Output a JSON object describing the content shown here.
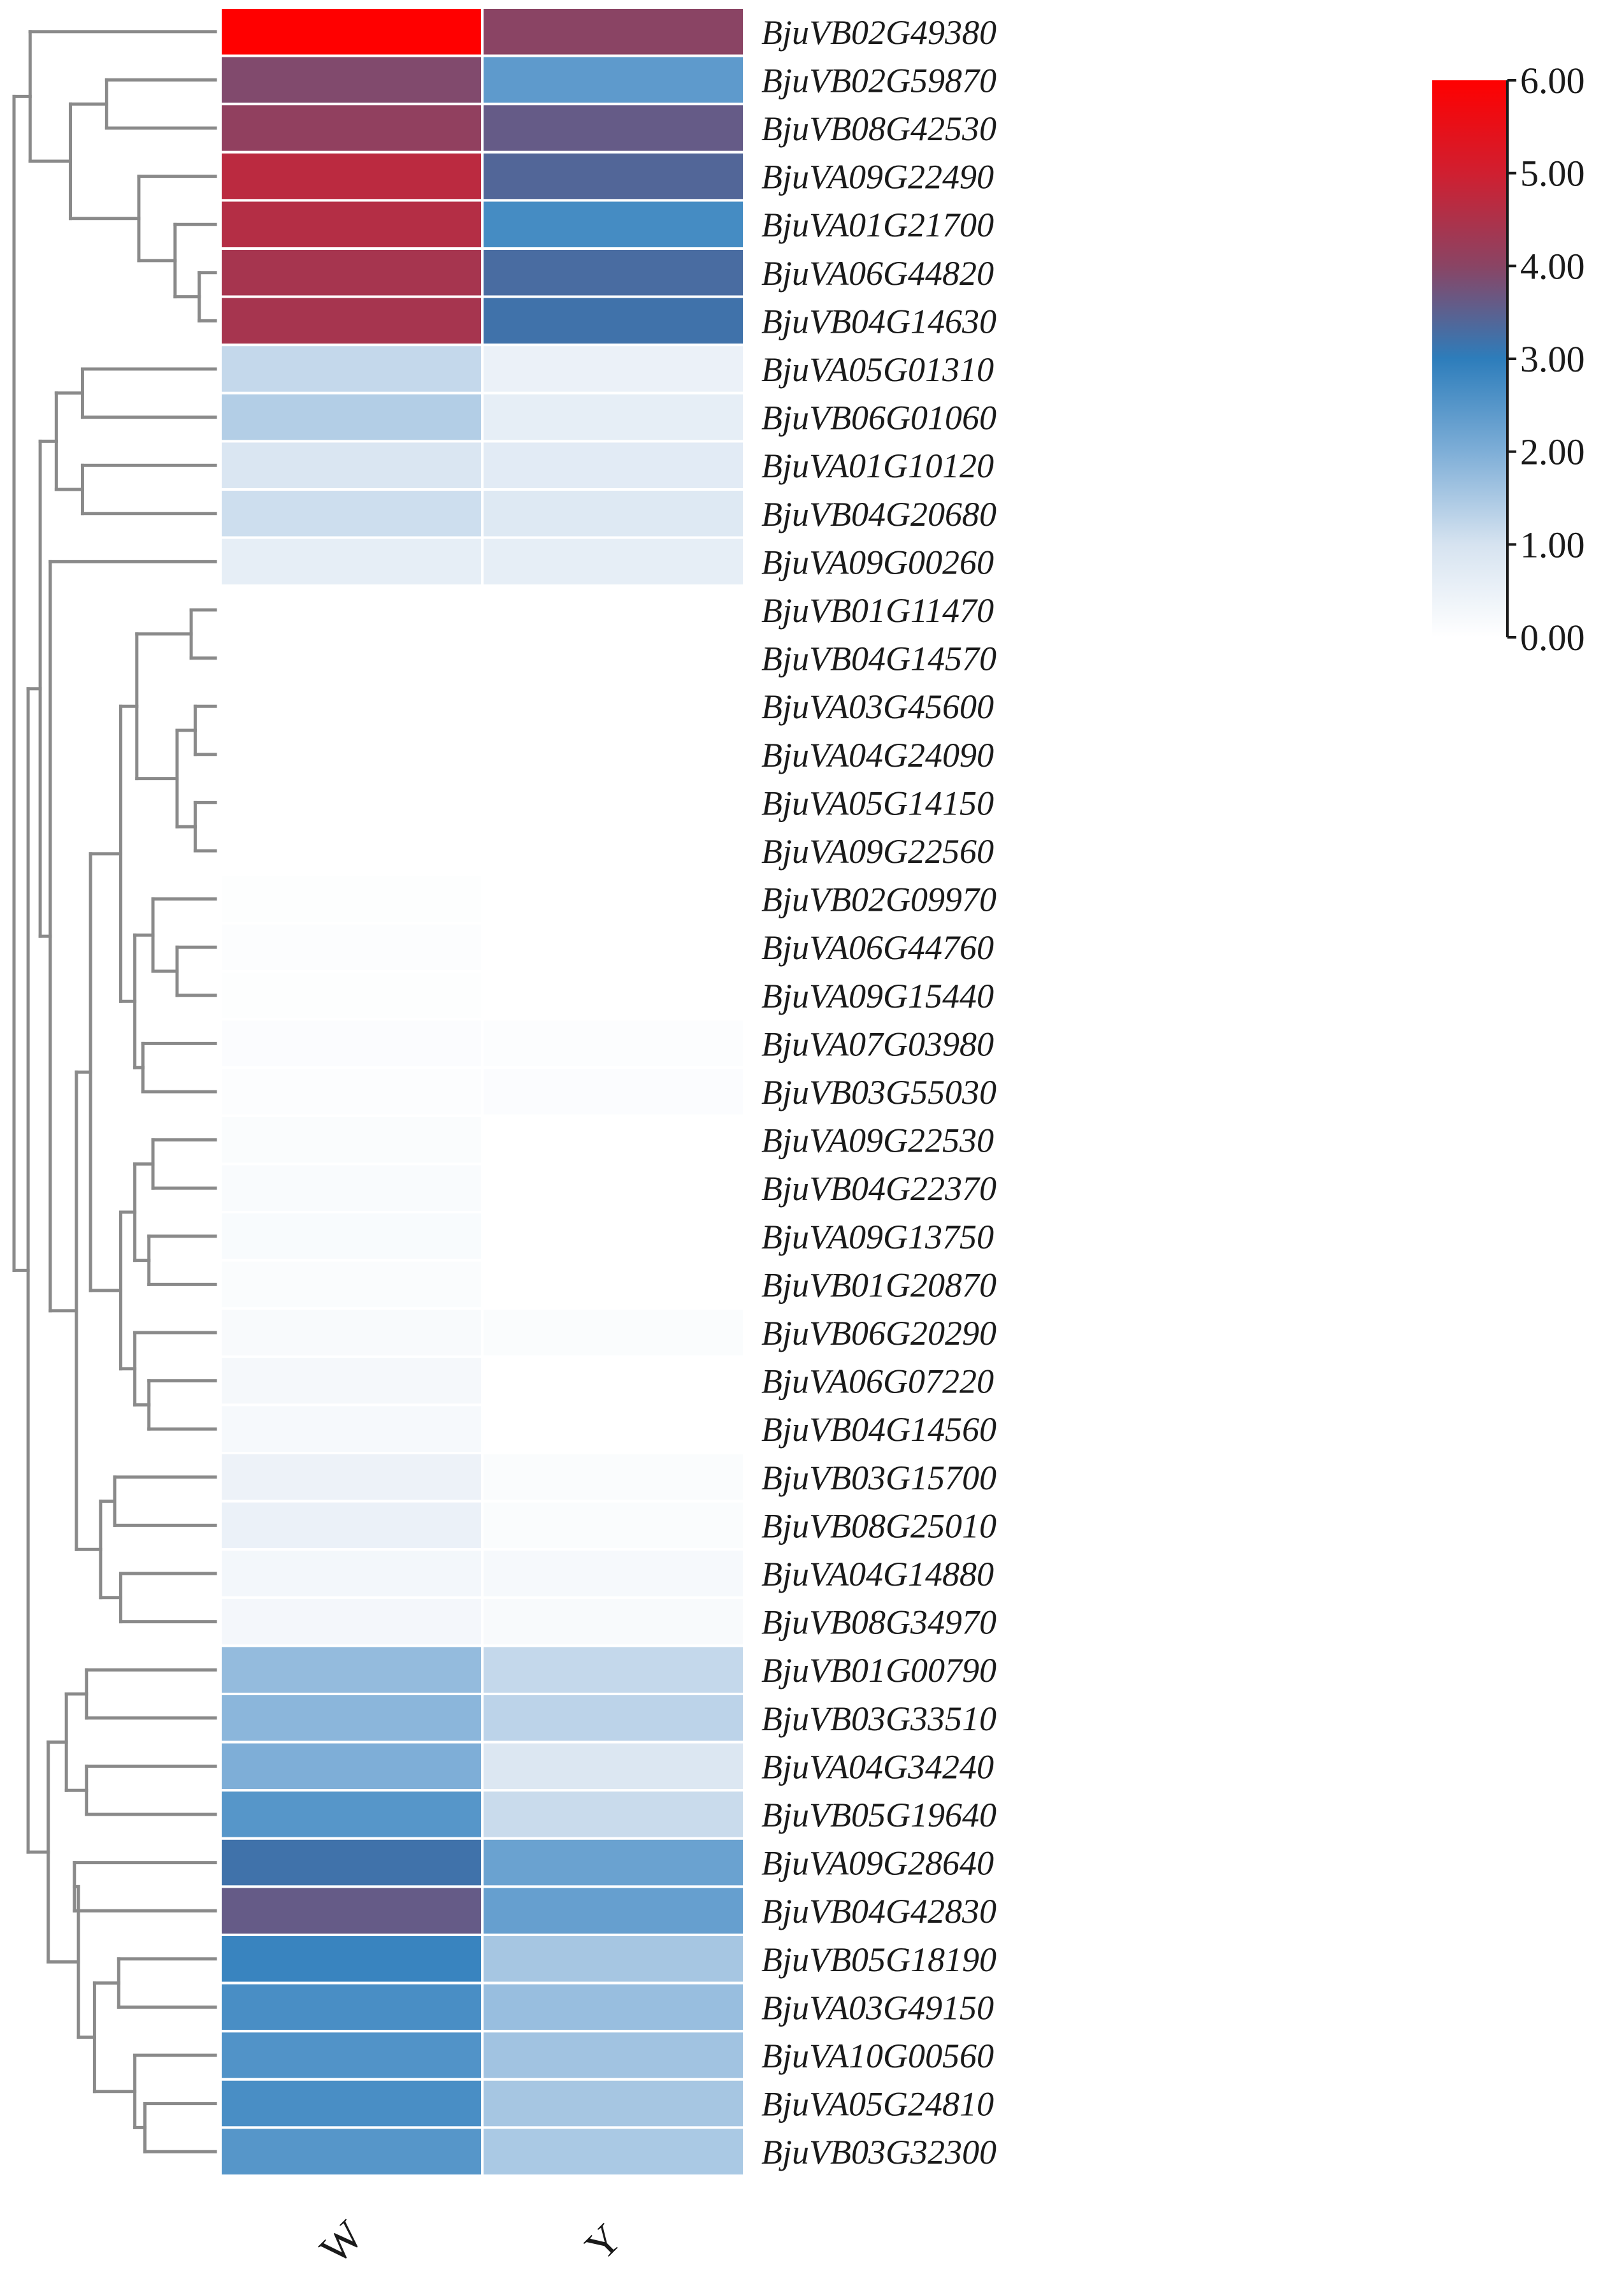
{
  "chart_data": {
    "type": "heatmap",
    "title": "",
    "columns": [
      "W",
      "Y"
    ],
    "rows": [
      "BjuVB02G49380",
      "BjuVB02G59870",
      "BjuVB08G42530",
      "BjuVA09G22490",
      "BjuVA01G21700",
      "BjuVA06G44820",
      "BjuVB04G14630",
      "BjuVA05G01310",
      "BjuVB06G01060",
      "BjuVA01G10120",
      "BjuVB04G20680",
      "BjuVA09G00260",
      "BjuVB01G11470",
      "BjuVB04G14570",
      "BjuVA03G45600",
      "BjuVA04G24090",
      "BjuVA05G14150",
      "BjuVA09G22560",
      "BjuVB02G09970",
      "BjuVA06G44760",
      "BjuVA09G15440",
      "BjuVA07G03980",
      "BjuVB03G55030",
      "BjuVA09G22530",
      "BjuVB04G22370",
      "BjuVA09G13750",
      "BjuVB01G20870",
      "BjuVB06G20290",
      "BjuVA06G07220",
      "BjuVB04G14560",
      "BjuVB03G15700",
      "BjuVB08G25010",
      "BjuVA04G14880",
      "BjuVB08G34970",
      "BjuVB01G00790",
      "BjuVB03G33510",
      "BjuVA04G34240",
      "BjuVB05G19640",
      "BjuVA09G28640",
      "BjuVB04G42830",
      "BjuVB05G18190",
      "BjuVA03G49150",
      "BjuVA10G00560",
      "BjuVA05G24810",
      "BjuVB03G32300"
    ],
    "values": [
      [
        6.0,
        4.0
      ],
      [
        3.9,
        2.4
      ],
      [
        4.1,
        3.6
      ],
      [
        4.7,
        3.4
      ],
      [
        4.6,
        2.7
      ],
      [
        4.4,
        3.3
      ],
      [
        4.4,
        3.2
      ],
      [
        1.2,
        0.5
      ],
      [
        1.4,
        0.6
      ],
      [
        0.9,
        0.7
      ],
      [
        1.1,
        0.8
      ],
      [
        0.6,
        0.6
      ],
      [
        0.0,
        0.0
      ],
      [
        0.0,
        0.0
      ],
      [
        0.0,
        0.0
      ],
      [
        0.0,
        0.0
      ],
      [
        0.0,
        0.0
      ],
      [
        0.0,
        0.0
      ],
      [
        0.05,
        0.0
      ],
      [
        0.07,
        0.0
      ],
      [
        0.05,
        0.0
      ],
      [
        0.1,
        0.08
      ],
      [
        0.08,
        0.1
      ],
      [
        0.12,
        0.0
      ],
      [
        0.14,
        0.0
      ],
      [
        0.16,
        0.0
      ],
      [
        0.12,
        0.0
      ],
      [
        0.17,
        0.11
      ],
      [
        0.24,
        0.0
      ],
      [
        0.22,
        0.0
      ],
      [
        0.45,
        0.12
      ],
      [
        0.5,
        0.12
      ],
      [
        0.3,
        0.21
      ],
      [
        0.28,
        0.18
      ],
      [
        1.75,
        1.2
      ],
      [
        1.85,
        1.3
      ],
      [
        2.0,
        0.85
      ],
      [
        2.5,
        1.15
      ],
      [
        3.2,
        2.25
      ],
      [
        3.6,
        2.3
      ],
      [
        2.85,
        1.55
      ],
      [
        2.65,
        1.7
      ],
      [
        2.55,
        1.6
      ],
      [
        2.65,
        1.55
      ],
      [
        2.5,
        1.5
      ]
    ],
    "colorbar": {
      "min": 0,
      "max": 6,
      "ticks": [
        "0.00",
        "1.00",
        "2.00",
        "3.00",
        "4.00",
        "5.00",
        "6.00"
      ],
      "stops": [
        {
          "value": 0,
          "color": "#ffffff"
        },
        {
          "value": 1,
          "color": "#d6e3f0"
        },
        {
          "value": 2,
          "color": "#7eaed7"
        },
        {
          "value": 3,
          "color": "#2d7dbb"
        },
        {
          "value": 4,
          "color": "#8a4464"
        },
        {
          "value": 5,
          "color": "#d01f30"
        },
        {
          "value": 6,
          "color": "#ff0000"
        }
      ]
    },
    "row_dendrogram": {
      "leaf_order_note": "leaves are the rows in the order listed",
      "merges": [
        {
          "id": "a",
          "children": [
            "r5",
            "r6"
          ],
          "height": 0.08
        },
        {
          "id": "b",
          "children": [
            "r4",
            "a"
          ],
          "height": 0.2
        },
        {
          "id": "c",
          "children": [
            "r3",
            "b"
          ],
          "height": 0.38
        },
        {
          "id": "d",
          "children": [
            "r1",
            "r2"
          ],
          "height": 0.54
        },
        {
          "id": "e",
          "children": [
            "d",
            "c"
          ],
          "height": 0.72
        },
        {
          "id": "f",
          "children": [
            "r0",
            "e"
          ],
          "height": 0.92
        },
        {
          "id": "g",
          "children": [
            "r7",
            "r8"
          ],
          "height": 0.66
        },
        {
          "id": "h",
          "children": [
            "r9",
            "r10"
          ],
          "height": 0.66
        },
        {
          "id": "i",
          "children": [
            "g",
            "h"
          ],
          "height": 0.79
        },
        {
          "id": "j",
          "children": [
            "r12",
            "r13"
          ],
          "height": 0.12
        },
        {
          "id": "k",
          "children": [
            "r14",
            "r15"
          ],
          "height": 0.1
        },
        {
          "id": "l",
          "children": [
            "r16",
            "r17"
          ],
          "height": 0.1
        },
        {
          "id": "m",
          "children": [
            "k",
            "l"
          ],
          "height": 0.19
        },
        {
          "id": "n",
          "children": [
            "j",
            "m"
          ],
          "height": 0.39
        },
        {
          "id": "o",
          "children": [
            "r19",
            "r20"
          ],
          "height": 0.19
        },
        {
          "id": "p",
          "children": [
            "r18",
            "o"
          ],
          "height": 0.31
        },
        {
          "id": "q",
          "children": [
            "r21",
            "r22"
          ],
          "height": 0.36
        },
        {
          "id": "r",
          "children": [
            "p",
            "q"
          ],
          "height": 0.4
        },
        {
          "id": "s",
          "children": [
            "n",
            "r"
          ],
          "height": 0.47
        },
        {
          "id": "t",
          "children": [
            "r23",
            "r24"
          ],
          "height": 0.31
        },
        {
          "id": "u",
          "children": [
            "r25",
            "r26"
          ],
          "height": 0.33
        },
        {
          "id": "v",
          "children": [
            "t",
            "u"
          ],
          "height": 0.4
        },
        {
          "id": "w",
          "children": [
            "r28",
            "r29"
          ],
          "height": 0.33
        },
        {
          "id": "x",
          "children": [
            "r27",
            "w"
          ],
          "height": 0.4
        },
        {
          "id": "y",
          "children": [
            "v",
            "x"
          ],
          "height": 0.47
        },
        {
          "id": "z",
          "children": [
            "s",
            "y"
          ],
          "height": 0.62
        },
        {
          "id": "aa",
          "children": [
            "r30",
            "r31"
          ],
          "height": 0.5
        },
        {
          "id": "ab",
          "children": [
            "r32",
            "r33"
          ],
          "height": 0.47
        },
        {
          "id": "ac",
          "children": [
            "aa",
            "ab"
          ],
          "height": 0.57
        },
        {
          "id": "ad",
          "children": [
            "z",
            "ac"
          ],
          "height": 0.69
        },
        {
          "id": "ae",
          "children": [
            "r11",
            "ad"
          ],
          "height": 0.82
        },
        {
          "id": "af",
          "children": [
            "i",
            "ae"
          ],
          "height": 0.87
        },
        {
          "id": "ag",
          "children": [
            "r34",
            "r35"
          ],
          "height": 0.64
        },
        {
          "id": "ah",
          "children": [
            "r36",
            "r37"
          ],
          "height": 0.64
        },
        {
          "id": "ai",
          "children": [
            "ag",
            "ah"
          ],
          "height": 0.74
        },
        {
          "id": "aj",
          "children": [
            "r38",
            "r39"
          ],
          "height": 0.7
        },
        {
          "id": "ak",
          "children": [
            "r40",
            "r41"
          ],
          "height": 0.48
        },
        {
          "id": "al",
          "children": [
            "r43",
            "r44"
          ],
          "height": 0.35
        },
        {
          "id": "am",
          "children": [
            "r42",
            "al"
          ],
          "height": 0.4
        },
        {
          "id": "an",
          "children": [
            "ak",
            "am"
          ],
          "height": 0.6
        },
        {
          "id": "ao",
          "children": [
            "aj",
            "an"
          ],
          "height": 0.68
        },
        {
          "id": "ap",
          "children": [
            "ai",
            "ao"
          ],
          "height": 0.83
        },
        {
          "id": "aq",
          "children": [
            "af",
            "ap"
          ],
          "height": 0.93
        },
        {
          "id": "root",
          "children": [
            "f",
            "aq"
          ],
          "height": 1.0
        }
      ]
    }
  }
}
